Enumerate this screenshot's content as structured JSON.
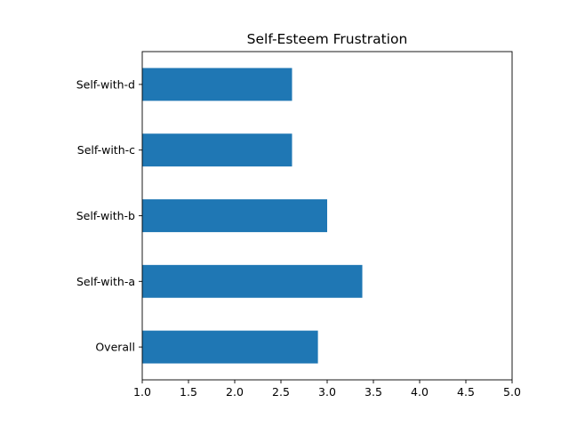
{
  "chart_data": {
    "type": "bar",
    "orientation": "horizontal",
    "title": "Self-Esteem Frustration",
    "xlabel": "",
    "ylabel": "",
    "categories": [
      "Overall",
      "Self-with-a",
      "Self-with-b",
      "Self-with-c",
      "Self-with-d"
    ],
    "values": [
      2.9,
      3.38,
      3.0,
      2.62,
      2.62
    ],
    "xlim": [
      1.0,
      5.0
    ],
    "xticks": [
      "1.0",
      "1.5",
      "2.0",
      "2.5",
      "3.0",
      "3.5",
      "4.0",
      "4.5",
      "5.0"
    ],
    "grid": false,
    "legend": "none",
    "bar_color": "#1f77b4"
  }
}
